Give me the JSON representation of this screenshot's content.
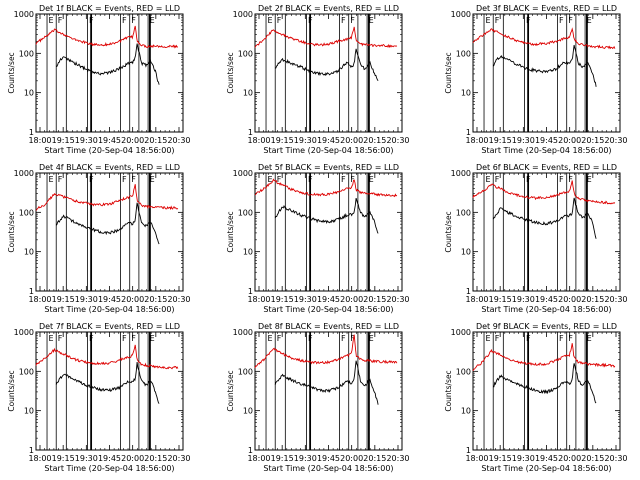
{
  "chart_data": {
    "type": "line",
    "layout": "3x3 grid of panels",
    "panel_titles": [
      "Det  1f BLACK = Events, RED = LLD",
      "Det  2f BLACK = Events, RED = LLD",
      "Det  3f BLACK = Events, RED = LLD",
      "Det  4f BLACK = Events, RED = LLD",
      "Det  5f BLACK = Events, RED = LLD",
      "Det  6f BLACK = Events, RED = LLD",
      "Det  7f BLACK = Events, RED = LLD",
      "Det  8f BLACK = Events, RED = LLD",
      "Det  9f BLACK = Events, RED = LLD"
    ],
    "xlabel": "Start Time (20-Sep-04 18:56:00)",
    "ylabel": "Counts/sec",
    "x_tick_labels": [
      "18:00",
      "19:15",
      "19:30",
      "19:45",
      "20:00",
      "20:15",
      "20:30"
    ],
    "x_range_minutes": [
      0,
      160
    ],
    "y_scale": "log",
    "ylim": [
      1,
      1000
    ],
    "y_tick_labels": [
      "1",
      "10",
      "100",
      "1000"
    ],
    "series": [
      {
        "name": "Events",
        "color": "#000000"
      },
      {
        "name": "LLD",
        "color": "#dd0000"
      }
    ],
    "vline_flags": [
      {
        "t": 12,
        "label": "E"
      },
      {
        "t": 22,
        "label": "F"
      },
      {
        "t": 33,
        "label": ""
      },
      {
        "t": 56,
        "label": "F"
      },
      {
        "t": 60,
        "label": ""
      },
      {
        "t": 92,
        "label": "F"
      },
      {
        "t": 102,
        "label": "F"
      },
      {
        "t": 112,
        "label": ""
      },
      {
        "t": 122,
        "label": "E"
      },
      {
        "t": 124,
        "label": ""
      }
    ],
    "panels": [
      {
        "lld_t": [
          0,
          10,
          20,
          30,
          40,
          50,
          60,
          70,
          80,
          90,
          100,
          105,
          108,
          110,
          115,
          122,
          130,
          140,
          150,
          155
        ],
        "lld_v": [
          180,
          260,
          390,
          310,
          230,
          200,
          170,
          165,
          170,
          200,
          250,
          260,
          480,
          210,
          160,
          150,
          155,
          150,
          150,
          145
        ],
        "evt_t": [
          22,
          25,
          30,
          40,
          50,
          60,
          70,
          80,
          90,
          100,
          105,
          108,
          110,
          115,
          120,
          125,
          130,
          134
        ],
        "evt_v": [
          45,
          60,
          85,
          60,
          45,
          35,
          30,
          33,
          40,
          55,
          60,
          75,
          180,
          55,
          50,
          65,
          35,
          15
        ]
      },
      {
        "lld_t": [
          0,
          10,
          20,
          30,
          40,
          50,
          60,
          70,
          80,
          90,
          100,
          105,
          108,
          110,
          115,
          122,
          130,
          140,
          150,
          155
        ],
        "lld_v": [
          150,
          220,
          400,
          300,
          240,
          200,
          170,
          165,
          170,
          200,
          230,
          250,
          500,
          200,
          170,
          170,
          160,
          160,
          150,
          150
        ],
        "evt_t": [
          22,
          25,
          30,
          40,
          50,
          60,
          70,
          80,
          90,
          100,
          105,
          108,
          110,
          115,
          120,
          125,
          130,
          134
        ],
        "evt_v": [
          40,
          55,
          70,
          55,
          45,
          35,
          30,
          30,
          35,
          60,
          45,
          55,
          130,
          50,
          40,
          60,
          30,
          20
        ]
      },
      {
        "lld_t": [
          0,
          10,
          20,
          30,
          40,
          50,
          60,
          70,
          80,
          90,
          100,
          105,
          108,
          110,
          115,
          122,
          130,
          140,
          150,
          155
        ],
        "lld_v": [
          200,
          280,
          400,
          320,
          250,
          200,
          175,
          170,
          180,
          200,
          240,
          260,
          420,
          230,
          180,
          160,
          150,
          145,
          140,
          140
        ],
        "evt_t": [
          22,
          25,
          30,
          40,
          50,
          60,
          70,
          80,
          90,
          100,
          105,
          108,
          110,
          115,
          120,
          125,
          130,
          134
        ],
        "evt_v": [
          45,
          65,
          85,
          65,
          50,
          40,
          35,
          35,
          40,
          60,
          55,
          70,
          160,
          55,
          45,
          60,
          30,
          15
        ]
      },
      {
        "lld_t": [
          0,
          10,
          20,
          30,
          40,
          50,
          60,
          70,
          80,
          90,
          100,
          105,
          108,
          110,
          115,
          122,
          130,
          140,
          150,
          155
        ],
        "lld_v": [
          120,
          160,
          300,
          250,
          200,
          180,
          160,
          155,
          160,
          200,
          240,
          260,
          500,
          200,
          150,
          140,
          135,
          130,
          130,
          130
        ],
        "evt_t": [
          22,
          25,
          30,
          40,
          50,
          60,
          70,
          80,
          90,
          100,
          105,
          108,
          110,
          115,
          120,
          125,
          130,
          134
        ],
        "evt_v": [
          45,
          60,
          80,
          60,
          45,
          38,
          32,
          30,
          35,
          55,
          50,
          60,
          170,
          55,
          45,
          60,
          30,
          15
        ]
      },
      {
        "lld_t": [
          0,
          10,
          20,
          30,
          40,
          50,
          60,
          70,
          80,
          90,
          100,
          105,
          108,
          110,
          115,
          122,
          130,
          140,
          150,
          155
        ],
        "lld_v": [
          300,
          400,
          650,
          500,
          380,
          320,
          290,
          280,
          290,
          330,
          400,
          420,
          700,
          380,
          320,
          300,
          290,
          280,
          275,
          270
        ],
        "evt_t": [
          22,
          25,
          30,
          40,
          50,
          60,
          70,
          80,
          90,
          100,
          105,
          108,
          110,
          115,
          120,
          125,
          130,
          134
        ],
        "evt_v": [
          70,
          95,
          140,
          110,
          85,
          70,
          60,
          58,
          65,
          85,
          90,
          100,
          220,
          95,
          80,
          100,
          60,
          30
        ]
      },
      {
        "lld_t": [
          0,
          10,
          20,
          30,
          40,
          50,
          60,
          70,
          80,
          90,
          100,
          105,
          108,
          110,
          115,
          122,
          130,
          140,
          150,
          155
        ],
        "lld_v": [
          250,
          330,
          500,
          400,
          310,
          270,
          240,
          230,
          240,
          270,
          320,
          350,
          650,
          300,
          230,
          200,
          190,
          180,
          175,
          170
        ],
        "evt_t": [
          22,
          25,
          30,
          40,
          50,
          60,
          70,
          80,
          90,
          100,
          105,
          108,
          110,
          115,
          120,
          125,
          130,
          134
        ],
        "evt_v": [
          65,
          85,
          125,
          95,
          75,
          62,
          55,
          52,
          58,
          80,
          85,
          95,
          220,
          90,
          75,
          95,
          55,
          20
        ]
      },
      {
        "lld_t": [
          0,
          10,
          20,
          30,
          40,
          50,
          60,
          70,
          80,
          90,
          100,
          105,
          108,
          110,
          115,
          122,
          130,
          140,
          150,
          155
        ],
        "lld_v": [
          150,
          220,
          350,
          280,
          210,
          180,
          160,
          155,
          160,
          190,
          230,
          250,
          450,
          200,
          150,
          140,
          130,
          125,
          125,
          125
        ],
        "evt_t": [
          22,
          25,
          30,
          40,
          50,
          60,
          70,
          80,
          90,
          100,
          105,
          108,
          110,
          115,
          120,
          125,
          130,
          134
        ],
        "evt_v": [
          45,
          60,
          85,
          65,
          50,
          40,
          35,
          33,
          38,
          55,
          55,
          65,
          160,
          55,
          45,
          60,
          30,
          15
        ]
      },
      {
        "lld_t": [
          0,
          10,
          20,
          30,
          40,
          50,
          60,
          70,
          80,
          90,
          100,
          105,
          108,
          110,
          115,
          122,
          130,
          140,
          150,
          155
        ],
        "lld_v": [
          130,
          200,
          380,
          280,
          220,
          190,
          170,
          165,
          170,
          200,
          250,
          280,
          900,
          250,
          200,
          190,
          180,
          175,
          170,
          165
        ],
        "evt_t": [
          22,
          25,
          30,
          40,
          50,
          60,
          70,
          80,
          90,
          100,
          105,
          108,
          110,
          115,
          120,
          125,
          130,
          134
        ],
        "evt_v": [
          45,
          60,
          80,
          60,
          48,
          40,
          33,
          32,
          38,
          55,
          50,
          60,
          200,
          55,
          45,
          60,
          30,
          15
        ]
      },
      {
        "lld_t": [
          0,
          10,
          20,
          30,
          40,
          50,
          60,
          70,
          80,
          90,
          100,
          105,
          108,
          110,
          115,
          122,
          130,
          140,
          150,
          155
        ],
        "lld_v": [
          110,
          170,
          330,
          260,
          200,
          170,
          155,
          150,
          155,
          190,
          240,
          260,
          520,
          220,
          170,
          160,
          150,
          145,
          140,
          135
        ],
        "evt_t": [
          22,
          25,
          30,
          40,
          50,
          60,
          70,
          80,
          90,
          100,
          105,
          108,
          110,
          115,
          120,
          125,
          130,
          134
        ],
        "evt_v": [
          40,
          55,
          75,
          58,
          45,
          38,
          32,
          30,
          36,
          55,
          50,
          58,
          170,
          55,
          45,
          58,
          30,
          15
        ]
      }
    ]
  }
}
